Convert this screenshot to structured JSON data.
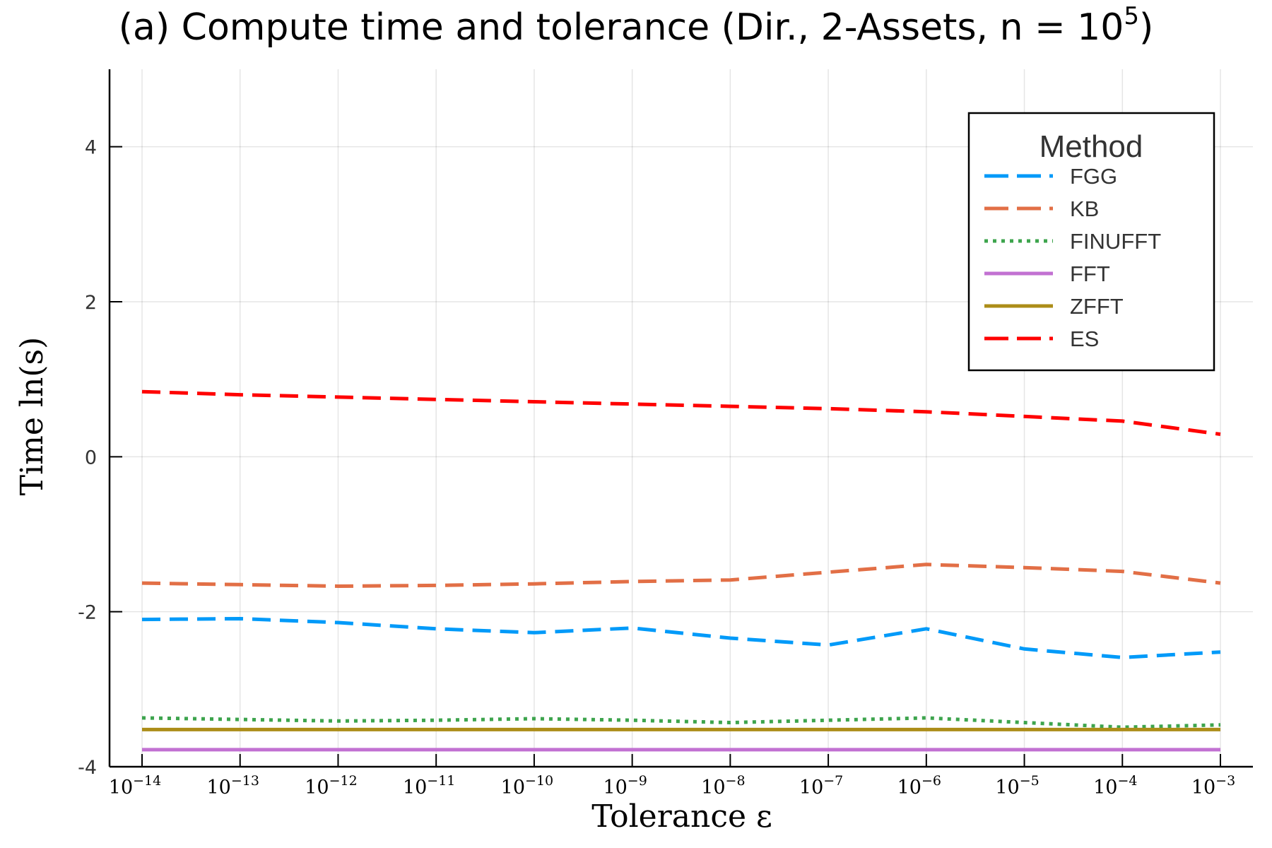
{
  "chart_data": {
    "type": "line",
    "title": "(a) Compute time and tolerance (Dir., 2-Assets, n = 10",
    "title_superscript": "5",
    "title_close": ")",
    "xlabel": "Tolerance ε",
    "ylabel": "Time ln(s)",
    "x_scale": "log10",
    "x": [
      1e-14,
      1e-13,
      1e-12,
      1e-11,
      1e-10,
      1e-09,
      1e-08,
      1e-07,
      1e-06,
      1e-05,
      0.0001,
      0.001
    ],
    "x_tick_base": "10",
    "x_tick_exponents": [
      "−14",
      "−13",
      "−12",
      "−11",
      "−10",
      "−9",
      "−8",
      "−7",
      "−6",
      "−5",
      "−4",
      "−3"
    ],
    "ylim": [
      -4,
      5
    ],
    "y_ticks": [
      -4,
      -2,
      0,
      2,
      4
    ],
    "y_tick_labels": [
      "-4",
      "-2",
      "0",
      "2",
      "4"
    ],
    "grid": true,
    "legend_title": "Method",
    "legend_position": "top-right",
    "series": [
      {
        "name": "FGG",
        "color": "#009af9",
        "style": "dash",
        "values": [
          -2.1,
          -2.09,
          -2.14,
          -2.22,
          -2.27,
          -2.21,
          -2.34,
          -2.43,
          -2.22,
          -2.48,
          -2.59,
          -2.52
        ]
      },
      {
        "name": "KB",
        "color": "#e26f46",
        "style": "dash",
        "values": [
          -1.63,
          -1.65,
          -1.67,
          -1.66,
          -1.64,
          -1.61,
          -1.59,
          -1.49,
          -1.39,
          -1.43,
          -1.48,
          -1.63
        ]
      },
      {
        "name": "FINUFFT",
        "color": "#3da44d",
        "style": "dot",
        "values": [
          -3.37,
          -3.39,
          -3.41,
          -3.4,
          -3.38,
          -3.4,
          -3.43,
          -3.4,
          -3.37,
          -3.43,
          -3.49,
          -3.46
        ]
      },
      {
        "name": "FFT",
        "color": "#c271d2",
        "style": "solid",
        "values": [
          -3.78,
          -3.78,
          -3.78,
          -3.78,
          -3.78,
          -3.78,
          -3.78,
          -3.78,
          -3.78,
          -3.78,
          -3.78,
          -3.78
        ]
      },
      {
        "name": "ZFFT",
        "color": "#ac8d18",
        "style": "solid",
        "values": [
          -3.52,
          -3.52,
          -3.52,
          -3.52,
          -3.52,
          -3.52,
          -3.52,
          -3.52,
          -3.52,
          -3.52,
          -3.52,
          -3.52
        ]
      },
      {
        "name": "ES",
        "color": "#ff0000",
        "style": "dash",
        "values": [
          0.84,
          0.8,
          0.77,
          0.74,
          0.71,
          0.68,
          0.65,
          0.62,
          0.58,
          0.52,
          0.46,
          0.29
        ]
      }
    ]
  }
}
